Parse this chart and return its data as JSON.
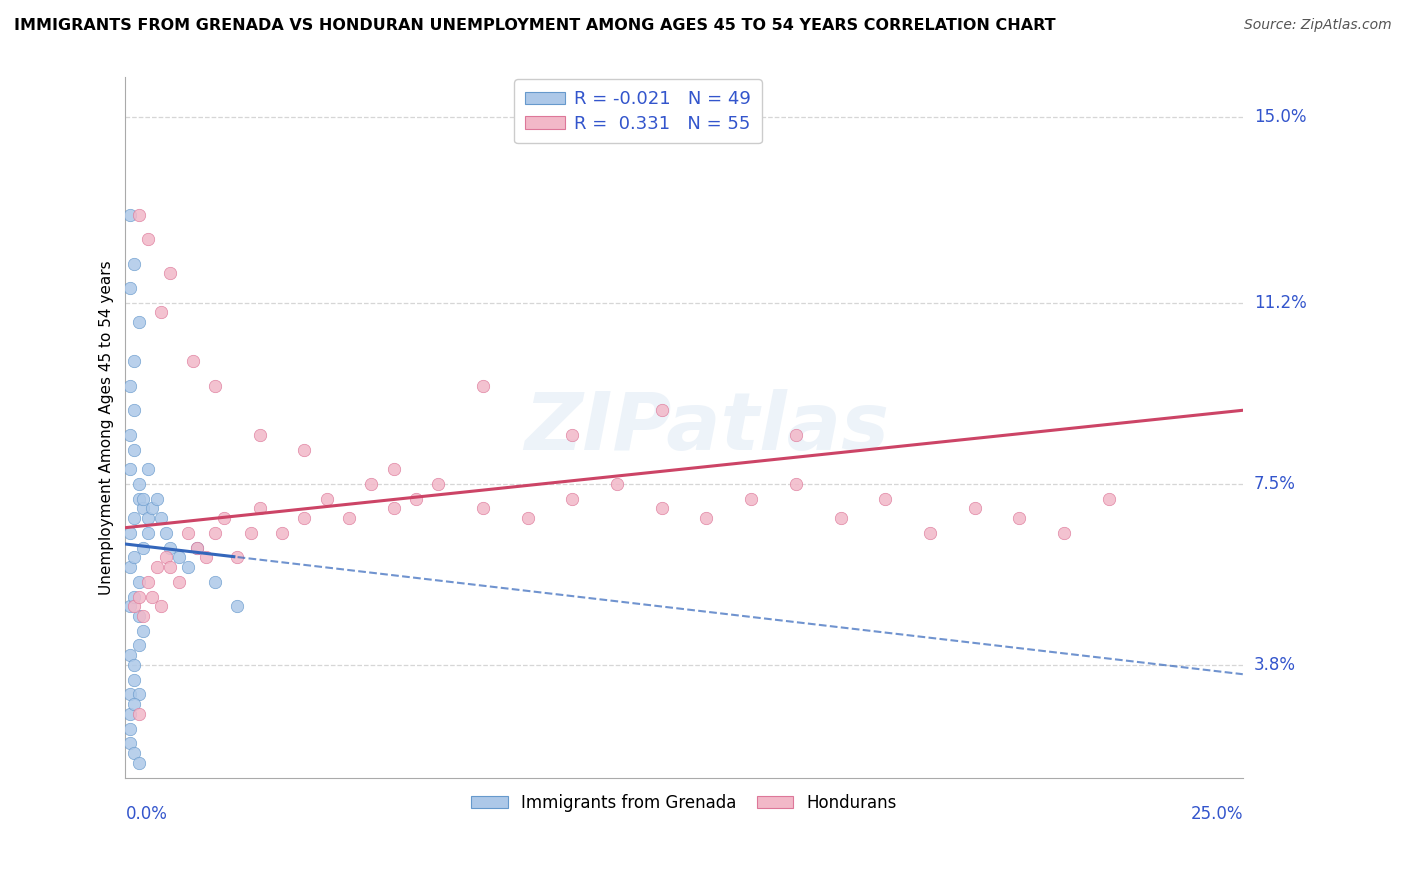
{
  "title": "IMMIGRANTS FROM GRENADA VS HONDURAN UNEMPLOYMENT AMONG AGES 45 TO 54 YEARS CORRELATION CHART",
  "source": "Source: ZipAtlas.com",
  "blue_color": "#adc8e8",
  "pink_color": "#f2b8c8",
  "blue_edge": "#6699cc",
  "pink_edge": "#dd7799",
  "blue_trend_color": "#3366bb",
  "pink_trend_color": "#cc4466",
  "blue_R": -0.021,
  "blue_N": 49,
  "pink_R": 0.331,
  "pink_N": 55,
  "blue_label": "Immigrants from Grenada",
  "pink_label": "Hondurans",
  "ylabel_axis": "Unemployment Among Ages 45 to 54 years",
  "xmin": 0.0,
  "xmax": 0.25,
  "ymin": 0.015,
  "ymax": 0.158,
  "y_ticks": [
    0.038,
    0.075,
    0.112,
    0.15
  ],
  "y_tick_labels": [
    "3.8%",
    "7.5%",
    "11.2%",
    "15.0%"
  ],
  "x_tick_left": "0.0%",
  "x_tick_right": "25.0%",
  "watermark": "ZIPatlas",
  "right_label_color": "#3355cc",
  "legend_text_color": "#3355cc",
  "blue_x": [
    0.001,
    0.002,
    0.003,
    0.004,
    0.005,
    0.001,
    0.002,
    0.003,
    0.004,
    0.005,
    0.001,
    0.002,
    0.003,
    0.001,
    0.002,
    0.001,
    0.002,
    0.003,
    0.001,
    0.002,
    0.001,
    0.001,
    0.002,
    0.003,
    0.004,
    0.005,
    0.006,
    0.007,
    0.008,
    0.009,
    0.01,
    0.012,
    0.014,
    0.016,
    0.02,
    0.025,
    0.001,
    0.002,
    0.003,
    0.001,
    0.002,
    0.001,
    0.004,
    0.003,
    0.002,
    0.001,
    0.001,
    0.002,
    0.003
  ],
  "blue_y": [
    0.065,
    0.068,
    0.072,
    0.07,
    0.065,
    0.058,
    0.06,
    0.055,
    0.062,
    0.068,
    0.05,
    0.052,
    0.048,
    0.085,
    0.09,
    0.095,
    0.1,
    0.108,
    0.115,
    0.12,
    0.13,
    0.078,
    0.082,
    0.075,
    0.072,
    0.078,
    0.07,
    0.072,
    0.068,
    0.065,
    0.062,
    0.06,
    0.058,
    0.062,
    0.055,
    0.05,
    0.04,
    0.038,
    0.042,
    0.032,
    0.035,
    0.028,
    0.045,
    0.032,
    0.03,
    0.025,
    0.022,
    0.02,
    0.018
  ],
  "pink_x": [
    0.002,
    0.003,
    0.004,
    0.005,
    0.006,
    0.007,
    0.008,
    0.009,
    0.01,
    0.012,
    0.014,
    0.016,
    0.018,
    0.02,
    0.022,
    0.025,
    0.028,
    0.03,
    0.035,
    0.04,
    0.045,
    0.05,
    0.055,
    0.06,
    0.065,
    0.07,
    0.08,
    0.09,
    0.1,
    0.11,
    0.12,
    0.13,
    0.14,
    0.15,
    0.16,
    0.17,
    0.18,
    0.19,
    0.2,
    0.21,
    0.22,
    0.003,
    0.005,
    0.008,
    0.01,
    0.015,
    0.02,
    0.03,
    0.04,
    0.06,
    0.08,
    0.1,
    0.12,
    0.15,
    0.003
  ],
  "pink_y": [
    0.05,
    0.052,
    0.048,
    0.055,
    0.052,
    0.058,
    0.05,
    0.06,
    0.058,
    0.055,
    0.065,
    0.062,
    0.06,
    0.065,
    0.068,
    0.06,
    0.065,
    0.07,
    0.065,
    0.068,
    0.072,
    0.068,
    0.075,
    0.07,
    0.072,
    0.075,
    0.07,
    0.068,
    0.072,
    0.075,
    0.07,
    0.068,
    0.072,
    0.075,
    0.068,
    0.072,
    0.065,
    0.07,
    0.068,
    0.065,
    0.072,
    0.13,
    0.125,
    0.11,
    0.118,
    0.1,
    0.095,
    0.085,
    0.082,
    0.078,
    0.095,
    0.085,
    0.09,
    0.085,
    0.028
  ]
}
